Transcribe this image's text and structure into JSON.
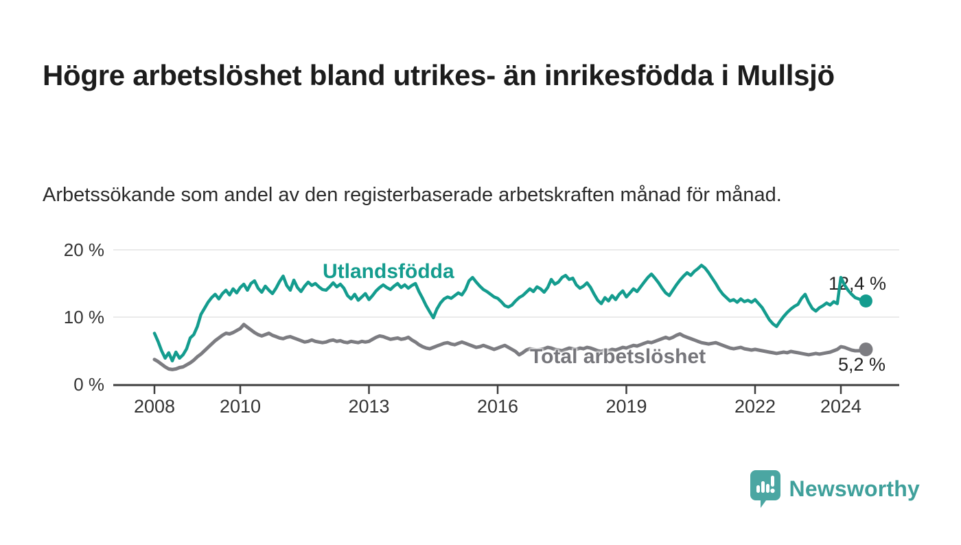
{
  "header": {
    "title": "Högre arbetslöshet bland utrikes- än inrikesfödda i Mullsjö",
    "subtitle": "Arbetssökande som andel av den registerbaserade arbetskraften månad för månad."
  },
  "chart_data": {
    "type": "line",
    "title": "Högre arbetslöshet bland utrikes- än inrikesfödda i Mullsjö",
    "subtitle": "Arbetssökande som andel av den registerbaserade arbetskraften månad för månad.",
    "x_monthly_start": "2008-01",
    "x_monthly_end": "2024-08",
    "ylim": [
      0,
      20
    ],
    "grid": "horizontal",
    "legend_position": "inline-labels",
    "y_ticks": [
      {
        "value": 0,
        "label": "0 %"
      },
      {
        "value": 10,
        "label": "10 %"
      },
      {
        "value": 20,
        "label": "20 %"
      }
    ],
    "x_ticks": [
      {
        "year": 2008,
        "label": "2008"
      },
      {
        "year": 2010,
        "label": "2010"
      },
      {
        "year": 2013,
        "label": "2013"
      },
      {
        "year": 2016,
        "label": "2016"
      },
      {
        "year": 2019,
        "label": "2019"
      },
      {
        "year": 2022,
        "label": "2022"
      },
      {
        "year": 2024,
        "label": "2024"
      }
    ],
    "series": [
      {
        "name": "Utlandsfödda",
        "color": "#149c8e",
        "end_label": "12,4 %",
        "end_value": 12.4,
        "values": [
          7.6,
          6.4,
          5.0,
          3.9,
          4.7,
          3.5,
          4.8,
          3.9,
          4.4,
          5.3,
          6.9,
          7.4,
          8.6,
          10.4,
          11.3,
          12.2,
          12.9,
          13.4,
          12.7,
          13.5,
          14.0,
          13.3,
          14.2,
          13.6,
          14.4,
          14.9,
          14.0,
          15.0,
          15.4,
          14.3,
          13.7,
          14.6,
          14.0,
          13.5,
          14.3,
          15.3,
          16.1,
          14.7,
          14.0,
          15.5,
          14.4,
          13.8,
          14.6,
          15.2,
          14.7,
          15.0,
          14.5,
          14.1,
          14.0,
          14.5,
          15.1,
          14.5,
          14.9,
          14.3,
          13.2,
          12.7,
          13.4,
          12.5,
          13.0,
          13.5,
          12.6,
          13.2,
          13.9,
          14.4,
          14.8,
          14.4,
          14.1,
          14.6,
          15.0,
          14.4,
          14.8,
          14.3,
          14.7,
          15.0,
          13.8,
          12.8,
          11.7,
          10.8,
          9.9,
          11.2,
          12.1,
          12.7,
          13.0,
          12.8,
          13.2,
          13.6,
          13.3,
          14.1,
          15.4,
          15.9,
          15.2,
          14.6,
          14.1,
          13.8,
          13.4,
          13.0,
          12.8,
          12.3,
          11.7,
          11.5,
          11.8,
          12.4,
          12.9,
          13.2,
          13.7,
          14.2,
          13.8,
          14.5,
          14.2,
          13.7,
          14.4,
          15.6,
          14.9,
          15.2,
          15.9,
          16.2,
          15.6,
          15.8,
          14.8,
          14.3,
          14.6,
          15.1,
          14.4,
          13.4,
          12.5,
          12.0,
          12.9,
          12.4,
          13.2,
          12.6,
          13.4,
          13.9,
          13.0,
          13.6,
          14.2,
          13.8,
          14.5,
          15.2,
          15.9,
          16.4,
          15.8,
          15.1,
          14.3,
          13.6,
          13.2,
          14.0,
          14.8,
          15.5,
          16.1,
          16.6,
          16.2,
          16.8,
          17.2,
          17.7,
          17.3,
          16.6,
          15.8,
          15.0,
          14.1,
          13.4,
          12.9,
          12.4,
          12.6,
          12.2,
          12.7,
          12.3,
          12.5,
          12.2,
          12.6,
          12.0,
          11.4,
          10.5,
          9.6,
          9.0,
          8.6,
          9.4,
          10.1,
          10.7,
          11.2,
          11.6,
          11.9,
          12.8,
          13.4,
          12.2,
          11.3,
          10.9,
          11.4,
          11.7,
          12.1,
          11.8,
          12.3,
          12.0,
          15.9,
          14.8,
          14.0,
          13.4,
          12.9,
          12.7,
          12.5,
          12.4
        ]
      },
      {
        "name": "Total arbetslöshet",
        "color": "#7c7c81",
        "end_label": "5,2 %",
        "end_value": 5.2,
        "values": [
          3.7,
          3.4,
          3.0,
          2.6,
          2.3,
          2.2,
          2.3,
          2.5,
          2.6,
          2.9,
          3.2,
          3.6,
          4.1,
          4.5,
          5.0,
          5.5,
          6.0,
          6.5,
          6.9,
          7.3,
          7.6,
          7.5,
          7.7,
          8.0,
          8.3,
          8.9,
          8.5,
          8.1,
          7.7,
          7.4,
          7.2,
          7.4,
          7.6,
          7.3,
          7.1,
          6.9,
          6.8,
          7.0,
          7.1,
          6.9,
          6.7,
          6.5,
          6.3,
          6.4,
          6.6,
          6.4,
          6.3,
          6.2,
          6.3,
          6.5,
          6.6,
          6.4,
          6.5,
          6.3,
          6.2,
          6.4,
          6.3,
          6.2,
          6.4,
          6.3,
          6.4,
          6.7,
          7.0,
          7.2,
          7.1,
          6.9,
          6.7,
          6.8,
          6.9,
          6.7,
          6.8,
          7.0,
          6.6,
          6.3,
          5.9,
          5.6,
          5.4,
          5.3,
          5.5,
          5.7,
          5.9,
          6.1,
          6.2,
          6.0,
          5.9,
          6.1,
          6.3,
          6.1,
          5.9,
          5.7,
          5.5,
          5.6,
          5.8,
          5.6,
          5.4,
          5.2,
          5.4,
          5.6,
          5.8,
          5.5,
          5.2,
          4.9,
          4.4,
          4.7,
          5.1,
          5.3,
          5.2,
          5.1,
          5.2,
          5.3,
          5.5,
          5.4,
          5.2,
          5.1,
          5.0,
          5.2,
          5.4,
          5.3,
          5.2,
          5.4,
          5.3,
          5.5,
          5.4,
          5.2,
          5.0,
          4.9,
          5.1,
          5.0,
          5.2,
          5.1,
          5.3,
          5.5,
          5.4,
          5.6,
          5.8,
          5.7,
          5.9,
          6.1,
          6.3,
          6.2,
          6.4,
          6.6,
          6.8,
          7.0,
          6.8,
          7.0,
          7.3,
          7.5,
          7.2,
          7.0,
          6.8,
          6.6,
          6.4,
          6.2,
          6.1,
          6.0,
          6.1,
          6.2,
          6.0,
          5.8,
          5.6,
          5.4,
          5.3,
          5.4,
          5.5,
          5.3,
          5.2,
          5.1,
          5.2,
          5.1,
          5.0,
          4.9,
          4.8,
          4.7,
          4.6,
          4.7,
          4.8,
          4.7,
          4.9,
          4.8,
          4.7,
          4.6,
          4.5,
          4.4,
          4.5,
          4.6,
          4.5,
          4.6,
          4.7,
          4.8,
          5.0,
          5.2,
          5.6,
          5.5,
          5.3,
          5.1,
          5.0,
          5.0,
          5.1,
          5.2
        ]
      }
    ],
    "colors": {
      "accent_teal": "#149c8e",
      "neutral_gray": "#7c7c81",
      "gridline": "#e3e3e3",
      "axis": "#3e3e3e",
      "tick_text": "#333333"
    }
  },
  "footer": {
    "brand": "Newsworthy",
    "brand_color": "#3fa09b"
  }
}
